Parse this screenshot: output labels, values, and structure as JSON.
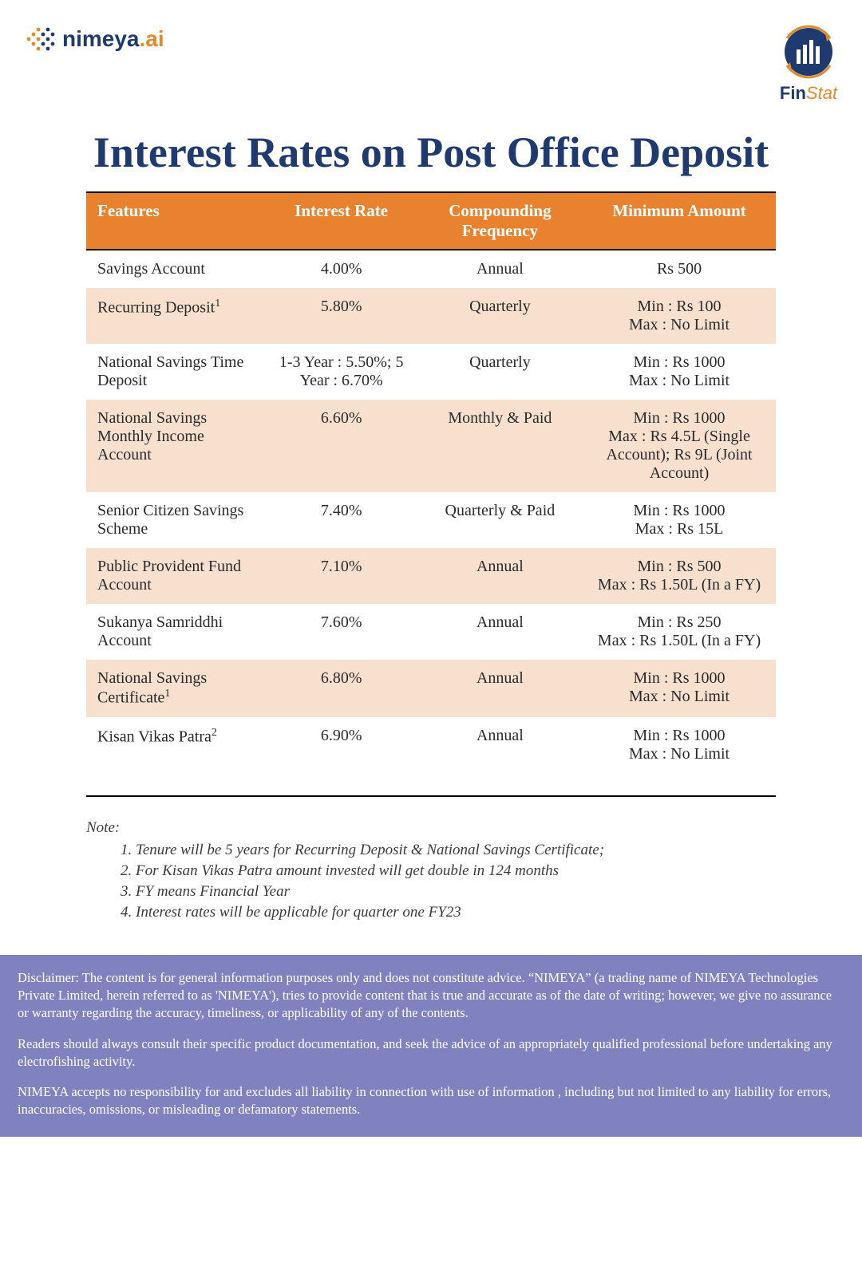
{
  "brand": {
    "left_name": "nimeya",
    "left_suffix": ".ai",
    "left_color_primary": "#1f3a6e",
    "left_color_accent": "#e08a2c",
    "right_prefix": "Fin",
    "right_suffix": "Stat",
    "right_color_primary": "#1f3a6e",
    "right_color_accent": "#e08a2c"
  },
  "title": "Interest Rates on Post Office Deposit",
  "title_color": "#1f3a6e",
  "title_fontsize": 54,
  "table": {
    "header_bg": "#e8822e",
    "header_fg": "#ffffff",
    "row_alt_bg": "#f8e0cf",
    "border_color": "#000000",
    "columns": [
      "Features",
      "Interest Rate",
      "Compounding Frequency",
      "Minimum Amount"
    ],
    "rows": [
      {
        "feature": "Savings Account",
        "sup": "",
        "rate": "4.00%",
        "freq": "Annual",
        "min": "Rs 500"
      },
      {
        "feature": "Recurring Deposit",
        "sup": "1",
        "rate": "5.80%",
        "freq": "Quarterly",
        "min": "Min : Rs 100\nMax : No Limit"
      },
      {
        "feature": "National Savings Time Deposit",
        "sup": "",
        "rate": "1-3 Year : 5.50%; 5 Year : 6.70%",
        "freq": "Quarterly",
        "min": "Min : Rs 1000\nMax : No Limit"
      },
      {
        "feature": "National Savings Monthly Income Account",
        "sup": "",
        "rate": "6.60%",
        "freq": "Monthly & Paid",
        "min": "Min : Rs 1000\nMax : Rs 4.5L (Single Account); Rs 9L (Joint Account)"
      },
      {
        "feature": "Senior Citizen Savings Scheme",
        "sup": "",
        "rate": "7.40%",
        "freq": "Quarterly & Paid",
        "min": "Min : Rs 1000\nMax : Rs 15L"
      },
      {
        "feature": "Public Provident Fund Account",
        "sup": "",
        "rate": "7.10%",
        "freq": "Annual",
        "min": "Min : Rs 500\nMax : Rs 1.50L (In a FY)"
      },
      {
        "feature": "Sukanya Samriddhi Account",
        "sup": "",
        "rate": "7.60%",
        "freq": "Annual",
        "min": "Min : Rs 250\nMax : Rs 1.50L (In a FY)"
      },
      {
        "feature": "National Savings Certificate",
        "sup": "1",
        "rate": "6.80%",
        "freq": "Annual",
        "min": "Min : Rs 1000\nMax : No Limit"
      },
      {
        "feature": "Kisan Vikas Patra",
        "sup": "2",
        "rate": "6.90%",
        "freq": "Annual",
        "min": "Min : Rs 1000\nMax : No Limit"
      }
    ]
  },
  "notes": {
    "heading": "Note:",
    "items": [
      "Tenure will be 5 years for Recurring Deposit & National Savings Certificate;",
      "For Kisan Vikas Patra amount invested will get double in 124 months",
      "FY means Financial Year",
      "Interest rates will be applicable for quarter one FY23"
    ]
  },
  "disclaimer": {
    "bg": "#8082bf",
    "fg": "#ffffff",
    "paragraphs": [
      "Disclaimer: The content is for general information purposes only and does not constitute advice. “NIMEYA” (a trading name of NIMEYA Technologies Private Limited, herein referred to as 'NIMEYA'), tries to provide content that is true and accurate as of the date of writing; however, we give no assurance or warranty regarding the accuracy, timeliness, or applicability of any of the contents.",
      "Readers should always consult their specific product documentation, and seek the advice of an appropriately qualified professional before undertaking any electrofishing activity.",
      "NIMEYA accepts no responsibility for and excludes all liability in connection with use of information , including but not limited to any liability for errors, inaccuracies, omissions, or misleading or defamatory statements."
    ]
  }
}
